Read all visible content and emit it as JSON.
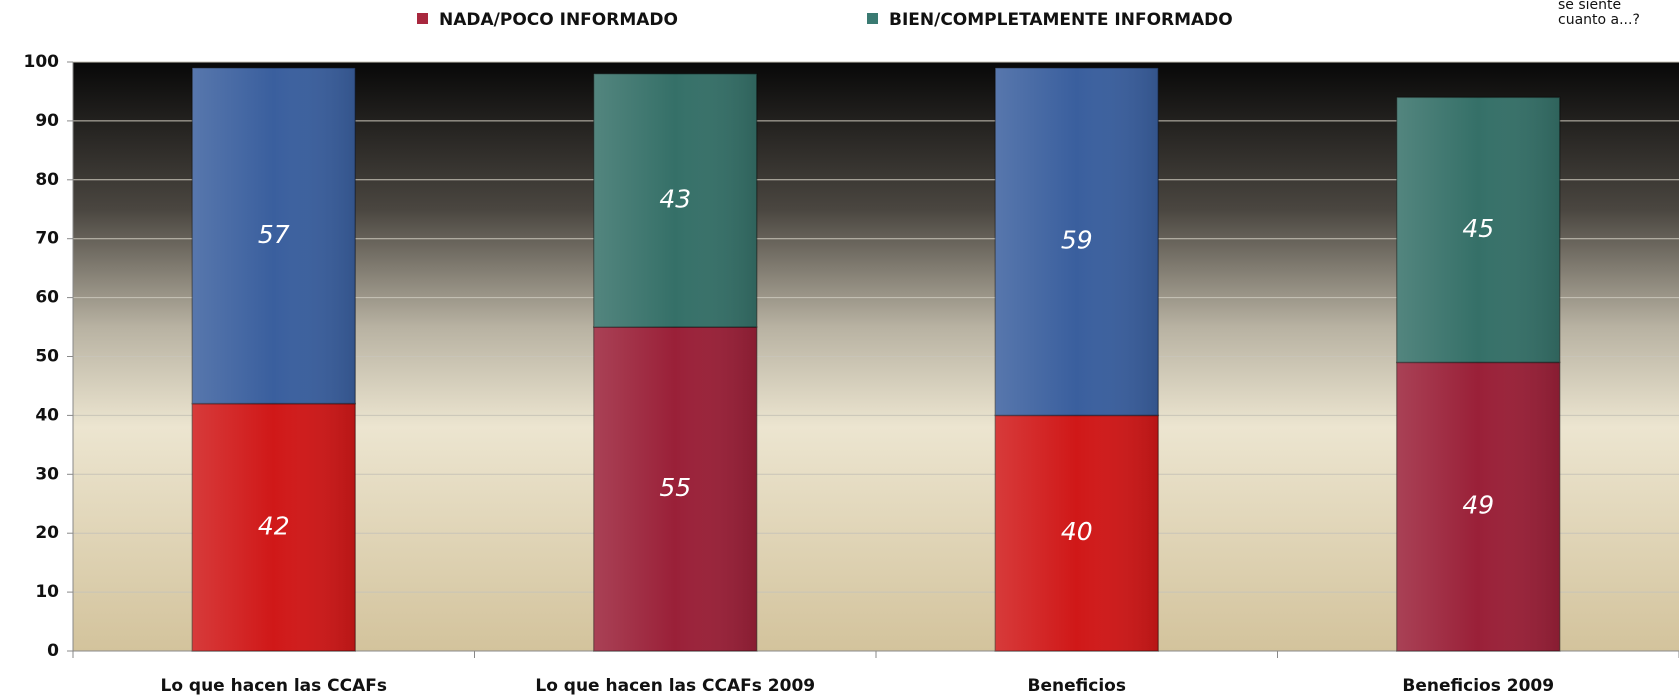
{
  "chart_data": {
    "type": "stacked_bar",
    "categories": [
      "Lo que hacen las CCAFs",
      "Lo que hacen las CCAFs 2009",
      "Beneficios",
      "Beneficios 2009"
    ],
    "series": [
      {
        "name": "NADA/POCO INFORMADO",
        "color": "#a8283e",
        "colors": [
          "#d01818",
          "#9a2038",
          "#d01818",
          "#9a2038"
        ],
        "values": [
          42,
          55,
          40,
          49
        ]
      },
      {
        "name": "BIEN/COMPLETAMENTE INFORMADO",
        "color": "#3a7a72",
        "colors": [
          "#3a5f9e",
          "#357068",
          "#3a5f9e",
          "#357068"
        ],
        "values": [
          57,
          43,
          59,
          45
        ]
      }
    ],
    "annotations": [
      "se siente",
      "cuanto a...?"
    ],
    "ylim": [
      0,
      100
    ],
    "yticks": [
      0,
      10,
      20,
      30,
      40,
      50,
      60,
      70,
      80,
      90,
      100
    ],
    "grid": true,
    "legend": "top"
  }
}
